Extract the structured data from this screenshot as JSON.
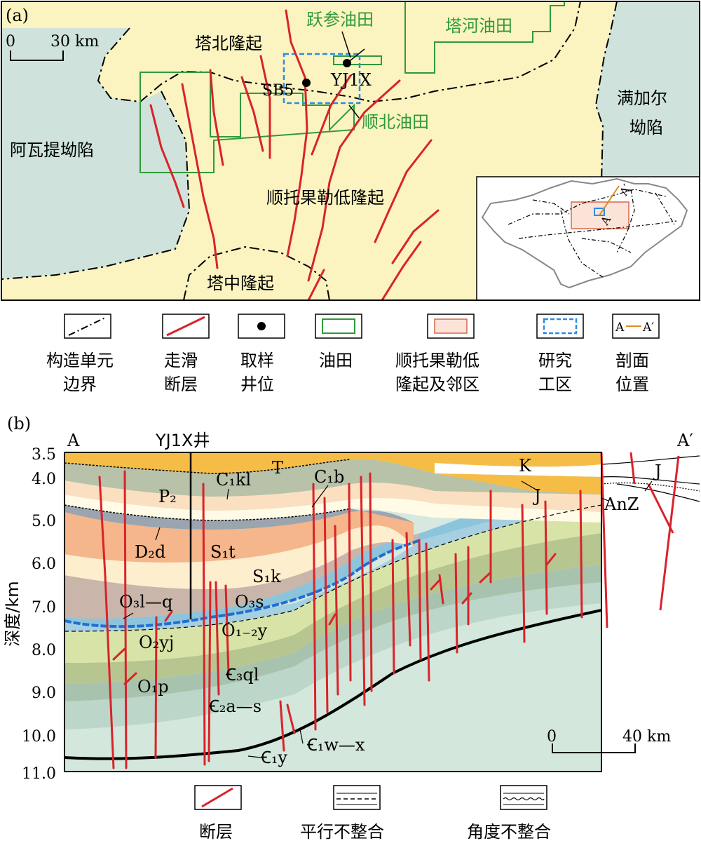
{
  "map": {
    "panel_label": "(a)",
    "scale": {
      "zero": "0",
      "value": "30 km"
    },
    "labels": {
      "tabei": "塔北隆起",
      "yuecan": "跃参油田",
      "tahe": "塔河油田",
      "shunbei": "顺北油田",
      "awati": "阿瓦提坳陷",
      "manjiaer_1": "满加尔",
      "manjiaer_2": "坳陷",
      "shuntuo": "顺托果勒低隆起",
      "tazhong": "塔中隆起",
      "well_sb5": "SB5",
      "well_yj1x": "YJ1X"
    },
    "inset_labels": {
      "a": "A",
      "a_prime": "A′"
    }
  },
  "legend_top": [
    {
      "symbol": "dashdot",
      "label_line1": "构造单元",
      "label_line2": "边界"
    },
    {
      "symbol": "red-line",
      "label_line1": "走滑",
      "label_line2": "断层"
    },
    {
      "symbol": "dot",
      "label_line1": "取样",
      "label_line2": "井位"
    },
    {
      "symbol": "green-box",
      "label_line1": "油田",
      "label_line2": ""
    },
    {
      "symbol": "pink-box",
      "label_line1": "顺托果勒低",
      "label_line2": "隆起及邻区"
    },
    {
      "symbol": "blue-dashed-box",
      "label_line1": "研究",
      "label_line2": "工区"
    },
    {
      "symbol": "section-line",
      "label_line1": "剖面",
      "label_line2": "位置",
      "box_a": "A",
      "box_a_prime": "A′"
    }
  ],
  "section": {
    "panel_label": "(b)",
    "end_a": "A",
    "end_a_prime": "A′",
    "well_label": "YJ1X井",
    "ylabel": "深度/km",
    "y_ticks": [
      "3.5",
      "4.0",
      "5.0",
      "6.0",
      "7.0",
      "8.0",
      "9.0",
      "10.0",
      "11.0"
    ],
    "scale": {
      "zero": "0",
      "value": "40 km"
    },
    "formations": {
      "T": "T",
      "K": "K",
      "J1": "J",
      "J2": "J",
      "AnZ": "AnZ",
      "C1kl": "C₁kl",
      "C1b": "C₁b",
      "P2": "P₂",
      "D2d": "D₂d",
      "S1t": "S₁t",
      "S1k": "S₁k",
      "O3lq": "O₃l—q",
      "O3s": "O₃s",
      "O12y": "O₁₋₂y",
      "O2yj": "O₂yj",
      "O1p": "O₁p",
      "Cm3ql": "Ꞓ₃ql",
      "Cm2as": "Ꞓ₂a—s",
      "Cm1wx": "Ꞓ₁w—x",
      "Cm1y": "Ꞓ₁y"
    }
  },
  "legend_bottom": [
    {
      "symbol": "red-fault",
      "label": "断层"
    },
    {
      "symbol": "dashed",
      "label": "平行不整合"
    },
    {
      "symbol": "wavy",
      "label": "角度不整合"
    }
  ],
  "colors": {
    "uplift": "#fbf4c0",
    "depression": "#cfe3dc",
    "fault": "#d9232a",
    "oilfield": "#2f9a3a",
    "study_area": "#2d8be6",
    "section_line": "#e08a1e",
    "pink_area": "#fbe3d8"
  }
}
